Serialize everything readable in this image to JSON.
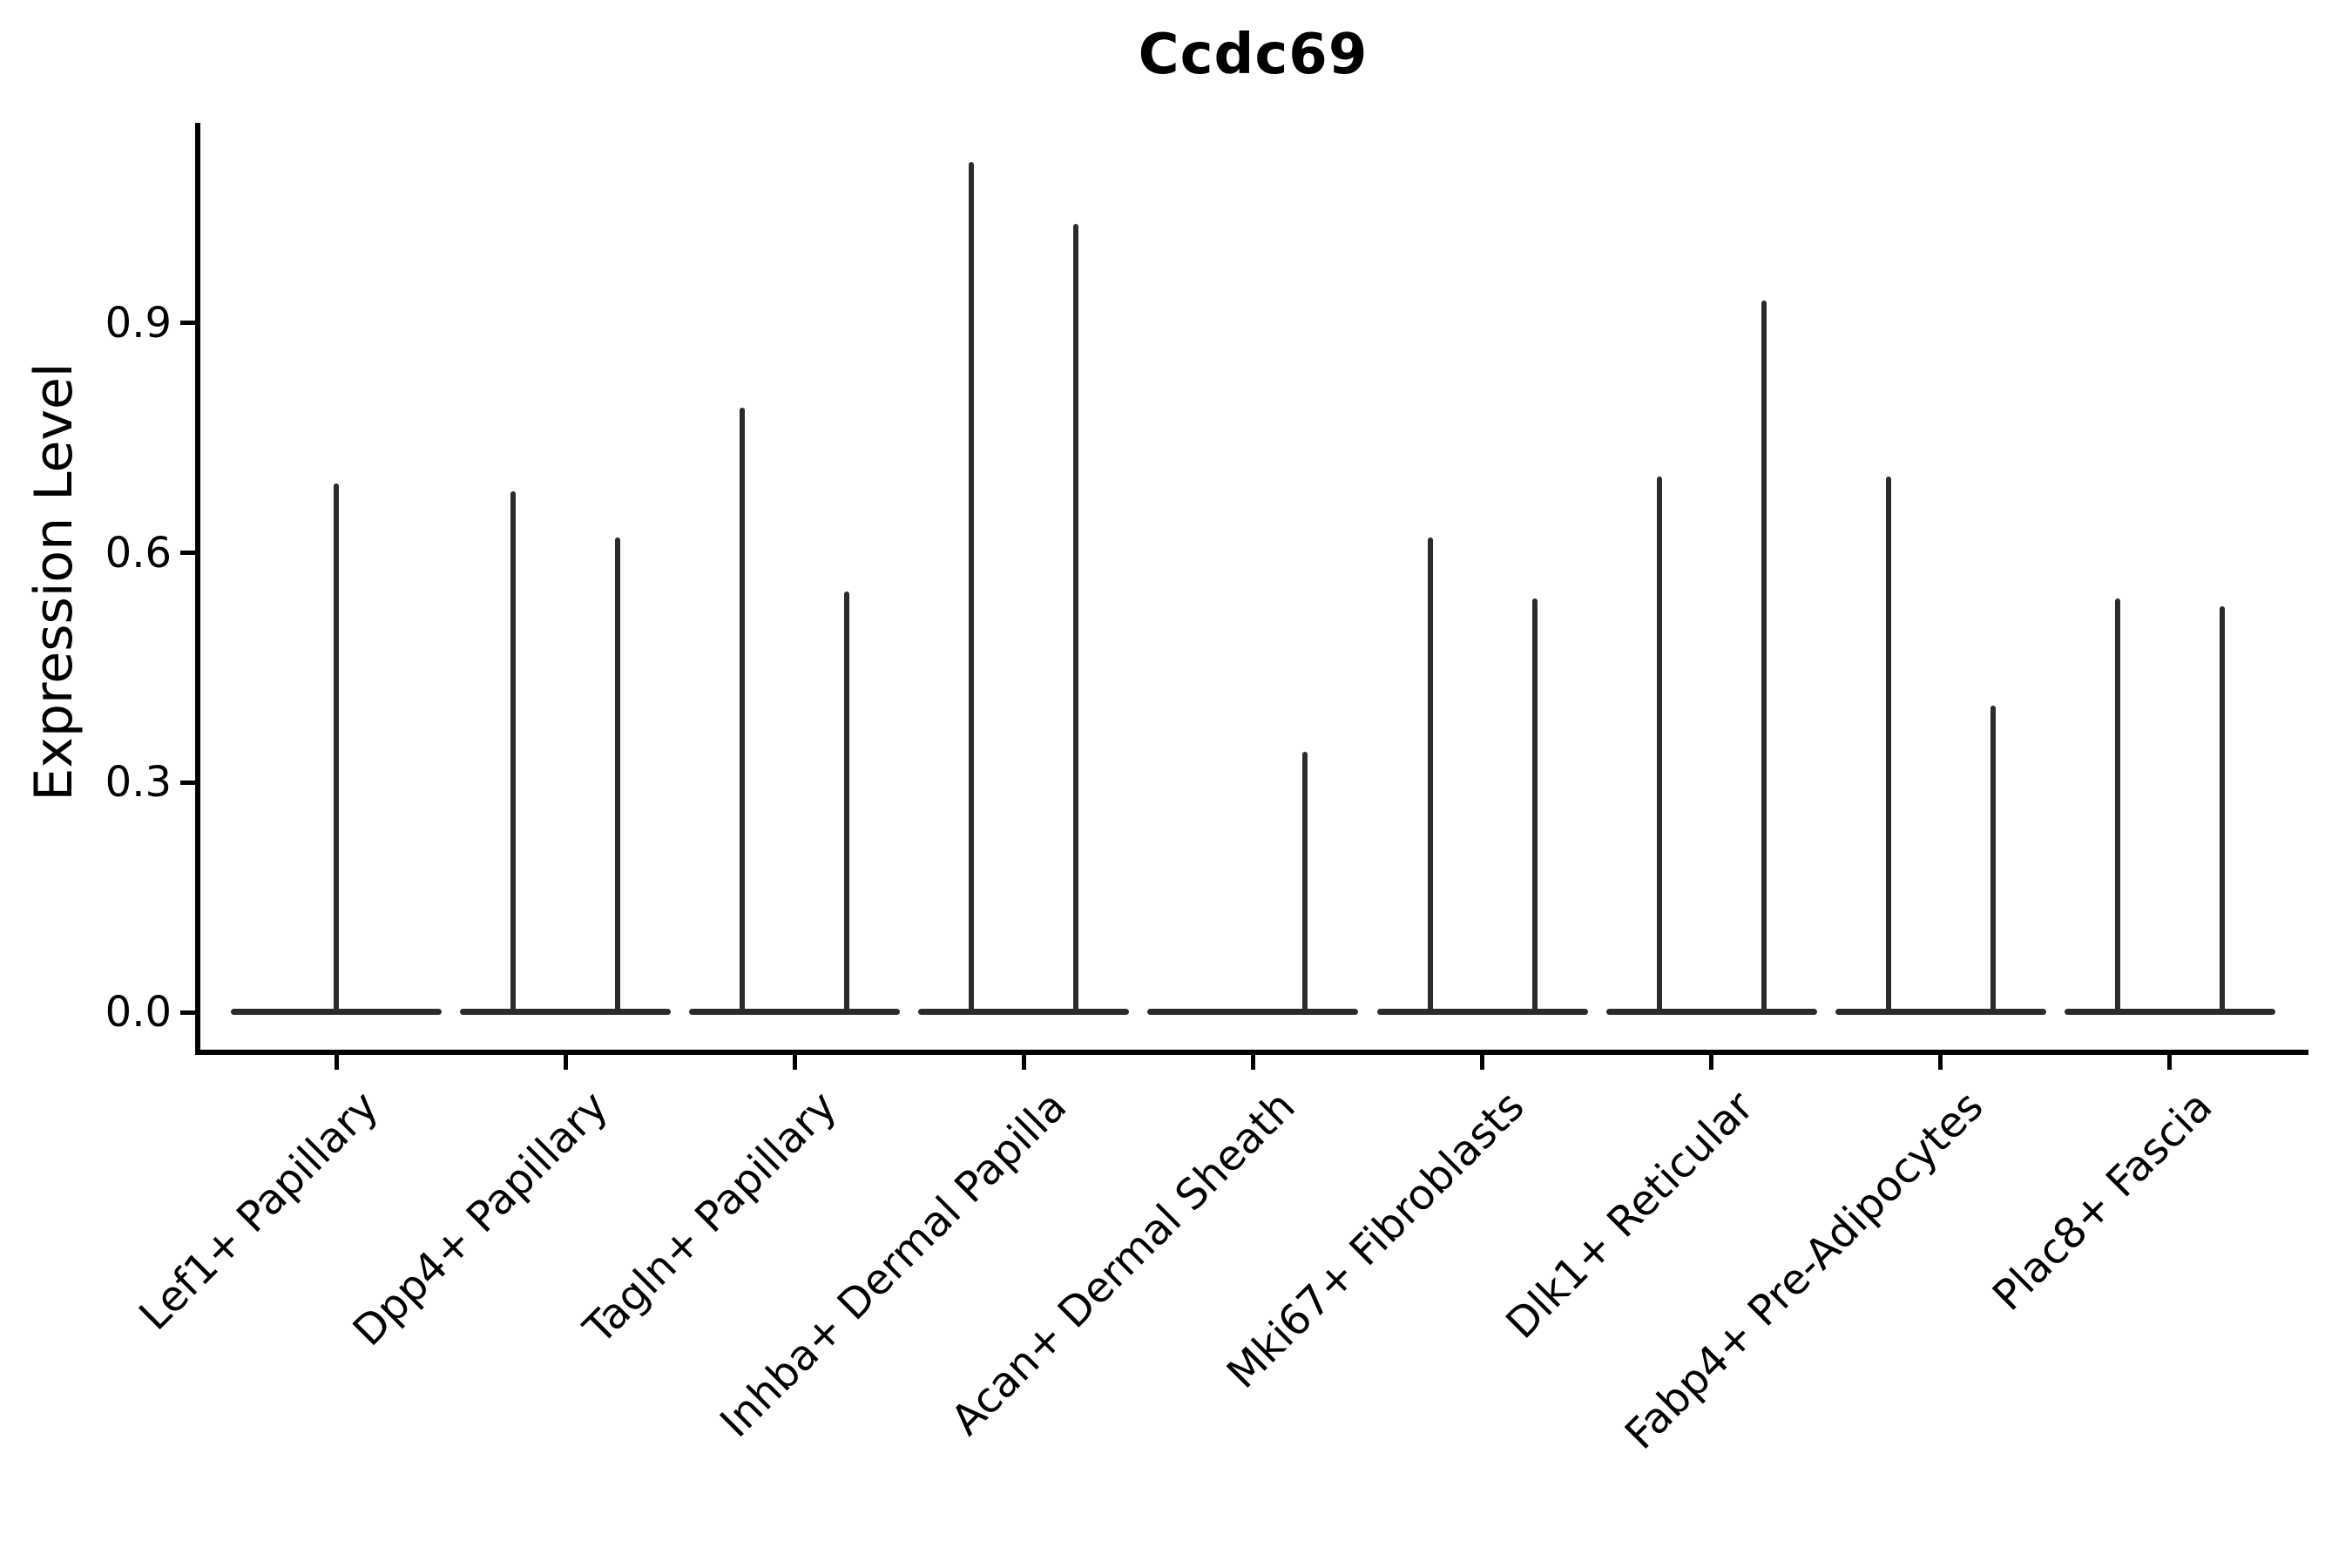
{
  "title": "Ccdc69",
  "chart_data": {
    "type": "violin",
    "title": "Ccdc69",
    "xlabel": "",
    "ylabel": "Expression Level",
    "ytick_labels": [
      "0.0",
      "0.3",
      "0.6",
      "0.9"
    ],
    "ytick_values": [
      0.0,
      0.3,
      0.6,
      0.9
    ],
    "ylim": [
      0.0,
      1.16
    ],
    "grid": false,
    "legend": "none",
    "categories": [
      "Lef1+ Papillary",
      "Dpp4+ Papillary",
      "Tagln+ Papillary",
      "Inhba+ Dermal Papilla",
      "Acan+ Dermal Sheath",
      "Mki67+ Fibroblasts",
      "Dlk1+ Reticular",
      "Fabp4+ Pre-Adipocytes",
      "Plac8+ Fascia"
    ],
    "series": [
      {
        "category": "Lef1+ Papillary",
        "violins": [
          {
            "position": "center",
            "max_expression": 0.69
          }
        ]
      },
      {
        "category": "Dpp4+ Papillary",
        "violins": [
          {
            "position": "left",
            "max_expression": 0.68
          },
          {
            "position": "right",
            "max_expression": 0.62
          }
        ]
      },
      {
        "category": "Tagln+ Papillary",
        "violins": [
          {
            "position": "left",
            "max_expression": 0.79
          },
          {
            "position": "right",
            "max_expression": 0.55
          }
        ]
      },
      {
        "category": "Inhba+ Dermal Papilla",
        "violins": [
          {
            "position": "left",
            "max_expression": 1.11
          },
          {
            "position": "right",
            "max_expression": 1.03
          }
        ]
      },
      {
        "category": "Acan+ Dermal Sheath",
        "violins": [
          {
            "position": "right",
            "max_expression": 0.34
          }
        ]
      },
      {
        "category": "Mki67+ Fibroblasts",
        "violins": [
          {
            "position": "left",
            "max_expression": 0.62
          },
          {
            "position": "right",
            "max_expression": 0.54
          }
        ]
      },
      {
        "category": "Dlk1+ Reticular",
        "violins": [
          {
            "position": "left",
            "max_expression": 0.7
          },
          {
            "position": "right",
            "max_expression": 0.93
          }
        ]
      },
      {
        "category": "Fabp4+ Pre-Adipocytes",
        "violins": [
          {
            "position": "left",
            "max_expression": 0.7
          },
          {
            "position": "right",
            "max_expression": 0.4
          }
        ]
      },
      {
        "category": "Plac8+ Fascia",
        "violins": [
          {
            "position": "left",
            "max_expression": 0.54
          },
          {
            "position": "right",
            "max_expression": 0.53
          }
        ]
      }
    ],
    "colors": {
      "violin": "#2b2b2b",
      "axis": "#000000",
      "text": "#000000",
      "background": "#ffffff"
    }
  }
}
